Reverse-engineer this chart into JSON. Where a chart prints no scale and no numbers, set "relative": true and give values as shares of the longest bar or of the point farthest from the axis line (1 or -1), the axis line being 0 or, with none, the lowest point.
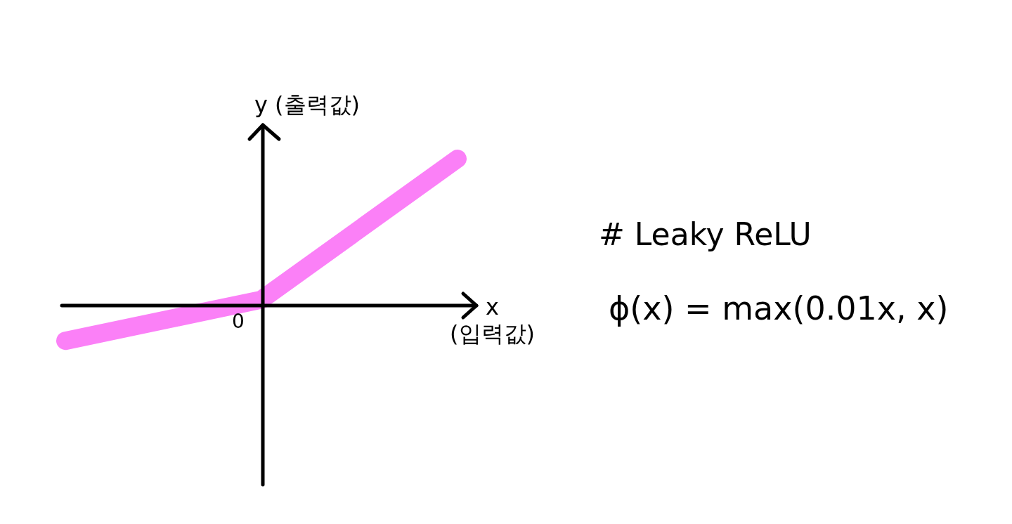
{
  "chart_data": {
    "type": "line",
    "title": "# Leaky ReLU",
    "subtitle": "ϕ(x) = max(0.01x, x)",
    "xlabel": "x (입력값)",
    "ylabel": "y (출력값)",
    "annotations": [
      "0"
    ],
    "categories": [
      null,
      null,
      null
    ],
    "relative": true,
    "series": [
      {
        "color": "#fb80f7",
        "values": [
          -0.24,
          0.04,
          1
        ]
      }
    ]
  }
}
